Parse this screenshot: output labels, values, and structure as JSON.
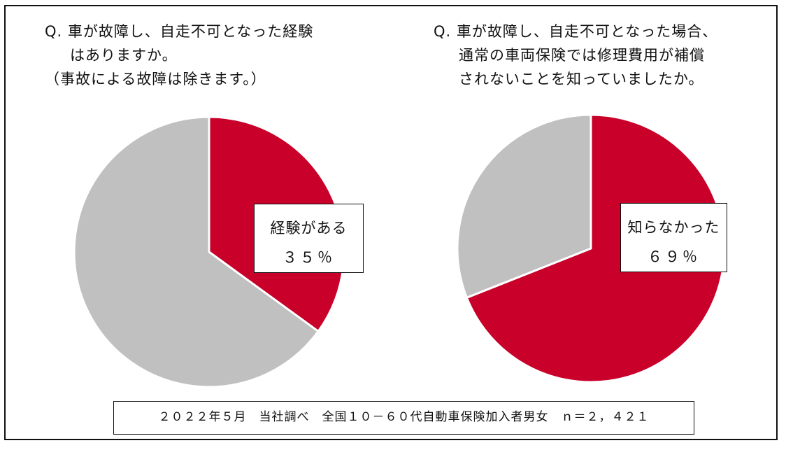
{
  "colors": {
    "accent": "#c8002a",
    "other": "#c0c0c0"
  },
  "chart_data": [
    {
      "type": "pie",
      "title_lines": [
        "Q. 車が故障し、自走不可となった経験",
        "はありますか。",
        "（事故による故障は除きます。）"
      ],
      "slices": [
        {
          "label": "経験がある",
          "value": 35,
          "value_label": "３５％",
          "color": "#c8002a"
        },
        {
          "label": "",
          "value": 65,
          "color": "#c0c0c0"
        }
      ]
    },
    {
      "type": "pie",
      "title_lines": [
        "Q. 車が故障し、自走不可となった場合、",
        "通常の車両保険では修理費用が補償",
        "されないことを知っていましたか。"
      ],
      "slices": [
        {
          "label": "知らなかった",
          "value": 69,
          "value_label": "６９％",
          "color": "#c8002a"
        },
        {
          "label": "",
          "value": 31,
          "color": "#c0c0c0"
        }
      ]
    }
  ],
  "footer": {
    "source": "２０２２年５月　当社調べ　全国１０－６０代自動車保険加入者男女　ｎ＝２，４２１"
  }
}
